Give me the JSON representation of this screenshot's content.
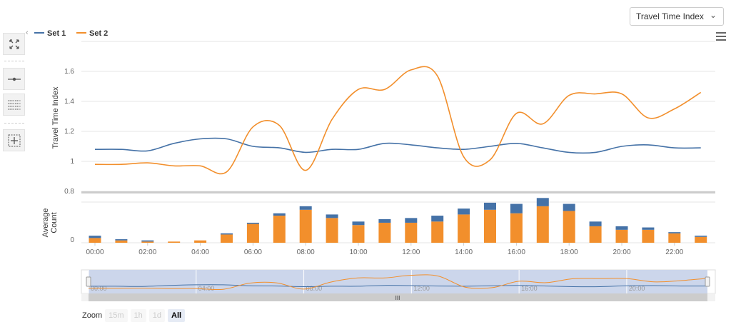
{
  "metric_select": {
    "value": "Travel Time Index"
  },
  "colors": {
    "set1": "#4572a7",
    "set2": "#f28f2c",
    "navigator_fill": "#ccd6eb"
  },
  "zoom": {
    "label": "Zoom",
    "buttons": [
      "15m",
      "1h",
      "1d",
      "All"
    ],
    "active": "All"
  },
  "chart_data": [
    {
      "type": "line",
      "legend": [
        "Set 1",
        "Set 2"
      ],
      "legend_position": "top-left",
      "ylabel": "Travel Time Index",
      "ylim": [
        0.8,
        1.8
      ],
      "yticks": [
        "0.8",
        "1",
        "1.2",
        "1.4",
        "1.6"
      ],
      "x": [
        0,
        1,
        2,
        3,
        4,
        5,
        6,
        7,
        8,
        9,
        10,
        11,
        12,
        13,
        14,
        15,
        16,
        17,
        18,
        19,
        20,
        21,
        22,
        23
      ],
      "series": [
        {
          "name": "Set 1",
          "values": [
            1.08,
            1.08,
            1.07,
            1.12,
            1.15,
            1.15,
            1.1,
            1.09,
            1.06,
            1.08,
            1.08,
            1.12,
            1.11,
            1.09,
            1.08,
            1.1,
            1.12,
            1.09,
            1.06,
            1.06,
            1.1,
            1.11,
            1.09,
            1.09
          ]
        },
        {
          "name": "Set 2",
          "values": [
            0.98,
            0.98,
            0.99,
            0.97,
            0.97,
            0.93,
            1.23,
            1.24,
            0.94,
            1.28,
            1.48,
            1.48,
            1.61,
            1.57,
            1.03,
            1.01,
            1.32,
            1.25,
            1.44,
            1.45,
            1.45,
            1.29,
            1.35,
            1.46
          ]
        }
      ]
    },
    {
      "type": "bar",
      "ylabel": "Average Count",
      "yticks": [
        "0"
      ],
      "x_tick_labels": [
        "00:00",
        "02:00",
        "04:00",
        "06:00",
        "08:00",
        "10:00",
        "12:00",
        "14:00",
        "16:00",
        "18:00",
        "20:00",
        "22:00"
      ],
      "x": [
        0,
        1,
        2,
        3,
        4,
        5,
        6,
        7,
        8,
        9,
        10,
        11,
        12,
        13,
        14,
        15,
        16,
        17,
        18,
        19,
        20,
        21,
        22,
        23
      ],
      "series": [
        {
          "name": "Set 2",
          "values": [
            4,
            2,
            1,
            1,
            2,
            7,
            16,
            23,
            28,
            21,
            15,
            17,
            17,
            18,
            24,
            28,
            25,
            31,
            27,
            14,
            11,
            11,
            8,
            5
          ]
        },
        {
          "name": "Set 1",
          "values": [
            2,
            1,
            1,
            0,
            0,
            1,
            1,
            2,
            3,
            3,
            3,
            3,
            4,
            5,
            5,
            6,
            8,
            7,
            6,
            4,
            3,
            2,
            1,
            1
          ]
        }
      ]
    }
  ],
  "navigator": {
    "x_tick_labels": [
      "00:00",
      "04:00",
      "08:00",
      "12:00",
      "16:00",
      "20:00"
    ],
    "scroll_grip": "III"
  }
}
